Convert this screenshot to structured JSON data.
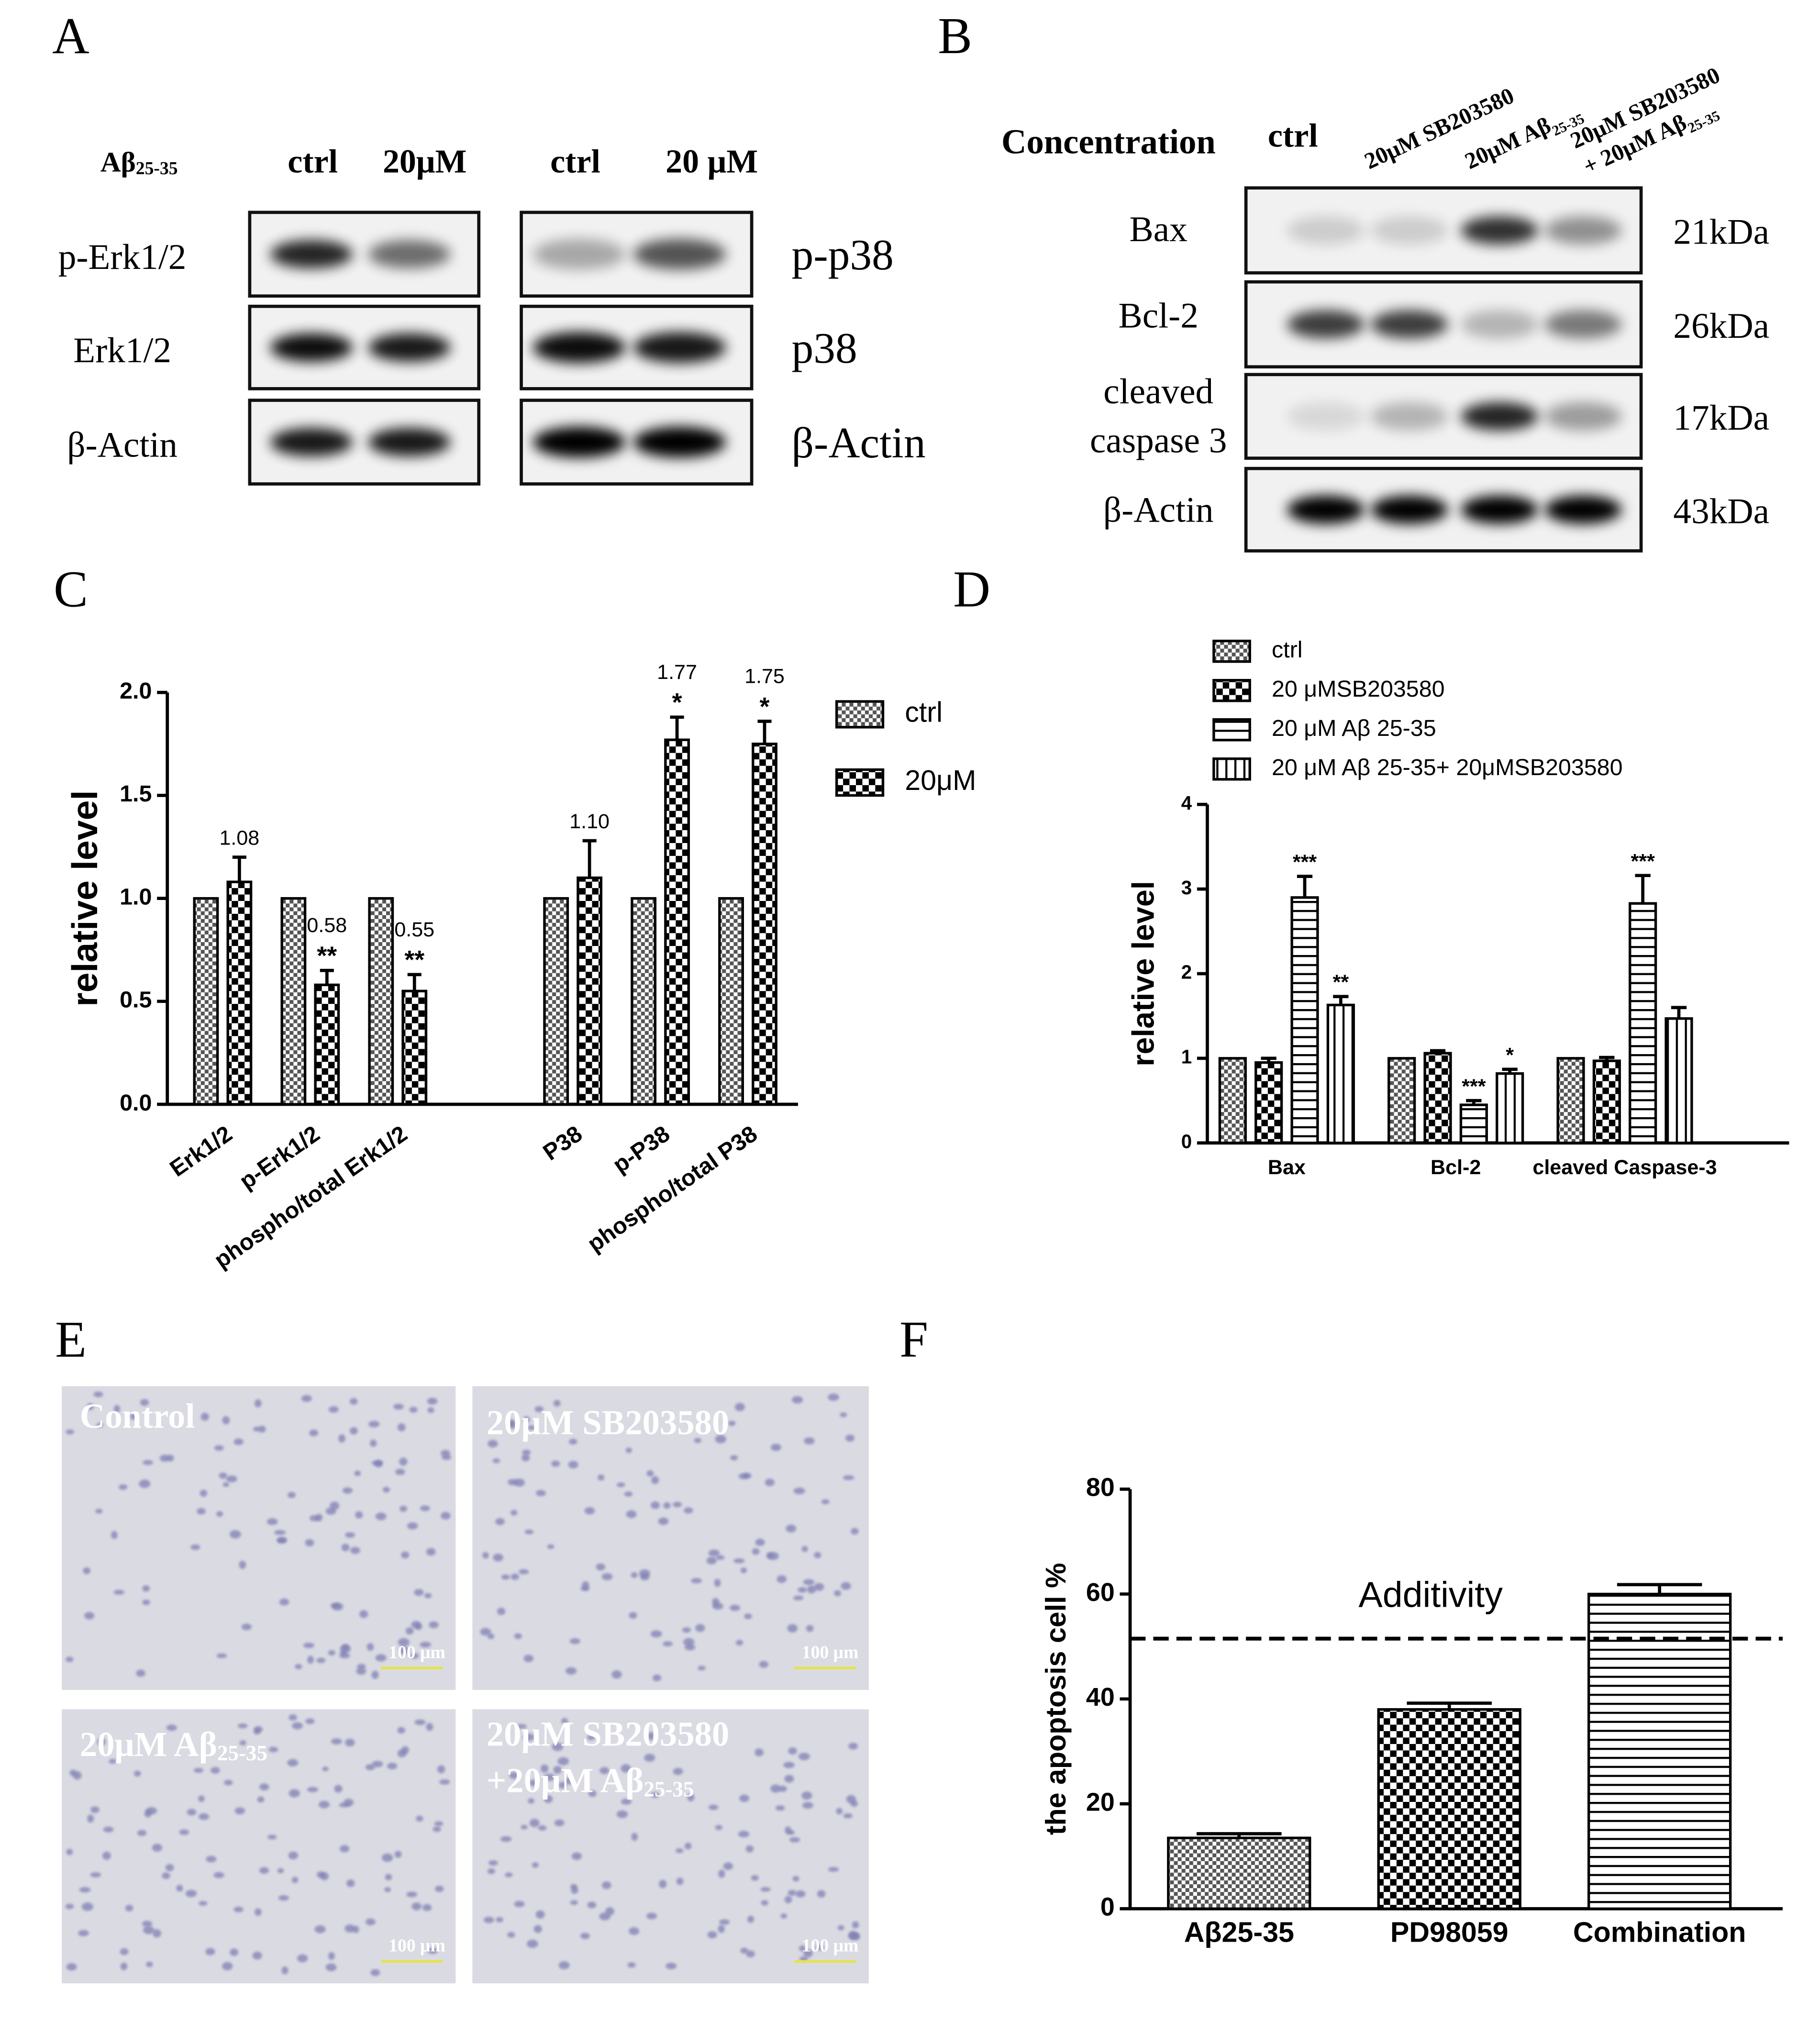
{
  "panel_labels": [
    "A",
    "B",
    "C",
    "D",
    "E",
    "F"
  ],
  "blot_a": {
    "header": {
      "main": "Aβ",
      "sub": "25-35"
    },
    "left": {
      "columns": [
        "ctrl",
        "20μM"
      ],
      "rows": [
        "p-Erk1/2",
        "Erk1/2",
        "β-Actin"
      ]
    },
    "right": {
      "columns": [
        "ctrl",
        "20 μM"
      ],
      "rows": [
        "p-p38",
        "p38",
        "β-Actin"
      ]
    }
  },
  "blot_b": {
    "header": "Concentration",
    "columns": [
      {
        "lines": [
          {
            "text": "ctrl"
          }
        ]
      },
      {
        "lines": [
          {
            "text": "20μM SB203580"
          }
        ]
      },
      {
        "lines": [
          {
            "text": "20μM Aβ",
            "sub": "25-35"
          }
        ]
      },
      {
        "lines": [
          {
            "text": "20μM SB203580"
          },
          {
            "text": "+ 20μM Aβ",
            "sub": "25-35"
          }
        ]
      }
    ],
    "rows": [
      {
        "label": [
          "Bax"
        ],
        "weight": "21kDa"
      },
      {
        "label": [
          "Bcl-2"
        ],
        "weight": "26kDa"
      },
      {
        "label": [
          "cleaved",
          "caspase 3"
        ],
        "weight": "17kDa"
      },
      {
        "label": [
          "β-Actin"
        ],
        "weight": "43kDa"
      }
    ]
  },
  "micrographs": [
    {
      "lines": [
        {
          "text": "Control"
        }
      ],
      "scale": "100 μm"
    },
    {
      "lines": [
        {
          "text": "20μM SB203580"
        }
      ],
      "scale": "100 μm"
    },
    {
      "lines": [
        {
          "text": "20μM Aβ",
          "sub": "25-35"
        }
      ],
      "scale": "100 μm"
    },
    {
      "lines": [
        {
          "text": "20μM SB203580"
        },
        {
          "text": "+20μM Aβ",
          "sub": "25-35"
        }
      ],
      "scale": "100 μm"
    }
  ],
  "chart_data": [
    {
      "type": "bar",
      "ylabel": "relative level",
      "categories": [
        "Erk1/2",
        "p-Erk1/2",
        "phospho/total Erk1/2",
        null,
        "P38",
        "p-P38",
        "phospho/total P38"
      ],
      "series": [
        {
          "name": "ctrl",
          "pattern": "check-fine",
          "color": "#000000",
          "values": [
            1,
            1,
            1,
            null,
            1,
            1,
            1
          ]
        },
        {
          "name": "20μM",
          "pattern": "check-coarse",
          "color": "#000000",
          "values": [
            1.08,
            0.58,
            0.55,
            null,
            1.1,
            1.77,
            1.75
          ],
          "errors": [
            0.12,
            0.07,
            0.08,
            null,
            0.18,
            0.11,
            0.11
          ],
          "value_labels": [
            "1.08",
            "0.58",
            "0.55",
            null,
            "1.10",
            "1.77",
            "1.75"
          ],
          "annotations": [
            null,
            "**",
            "**",
            null,
            null,
            "*",
            "*"
          ]
        }
      ],
      "ylim": [
        0,
        2
      ],
      "yticks": [
        {
          "value": 0,
          "label": "0.0"
        },
        {
          "value": 0.5,
          "label": "0.5"
        },
        {
          "value": 1,
          "label": "1.0"
        },
        {
          "value": 1.5,
          "label": "1.5"
        },
        {
          "value": 2,
          "label": "2.0"
        }
      ],
      "legend": "right"
    },
    {
      "type": "bar",
      "ylabel": "relative level",
      "categories": [
        "Bax",
        "Bcl-2",
        "cleaved Caspase-3"
      ],
      "series": [
        {
          "name": "ctrl",
          "pattern": "check-fine",
          "color": "#000000",
          "values": [
            1,
            1,
            1
          ]
        },
        {
          "name": "20 μMSB203580",
          "pattern": "check-coarse",
          "color": "#000000",
          "values": [
            0.95,
            1.06,
            0.97
          ],
          "errors": [
            0.05,
            0.03,
            0.04
          ]
        },
        {
          "name": "20 μM Aβ 25-35",
          "pattern": "hlines",
          "color": "#000000",
          "values": [
            2.9,
            0.45,
            2.83
          ],
          "errors": [
            0.25,
            0.05,
            0.33
          ],
          "annotations": [
            "***",
            "***",
            "***"
          ]
        },
        {
          "name": "20 μM Aβ 25-35+ 20μMSB203580",
          "pattern": "vlines",
          "color": "#000000",
          "values": [
            1.63,
            0.82,
            1.47
          ],
          "errors": [
            0.1,
            0.05,
            0.13
          ],
          "annotations": [
            "**",
            "*",
            null
          ]
        }
      ],
      "ylim": [
        0,
        4
      ],
      "yticks": [
        0,
        1,
        2,
        3,
        4
      ],
      "legend": "top"
    },
    {
      "type": "bar",
      "ylabel": "the apoptosis cell %",
      "categories": [
        "Aβ25-35",
        "PD98059",
        "Combination"
      ],
      "series": [
        {
          "patterns": [
            "check-fine",
            "check-coarse",
            "hlines"
          ],
          "color": "#000000",
          "values": [
            13.5,
            38,
            60
          ],
          "errors": [
            0.8,
            1.2,
            1.8
          ]
        }
      ],
      "ylim": [
        0,
        80
      ],
      "yticks": [
        0,
        20,
        40,
        60,
        80
      ],
      "reference_line": {
        "value": 51.5,
        "label": "Additivity"
      }
    }
  ]
}
